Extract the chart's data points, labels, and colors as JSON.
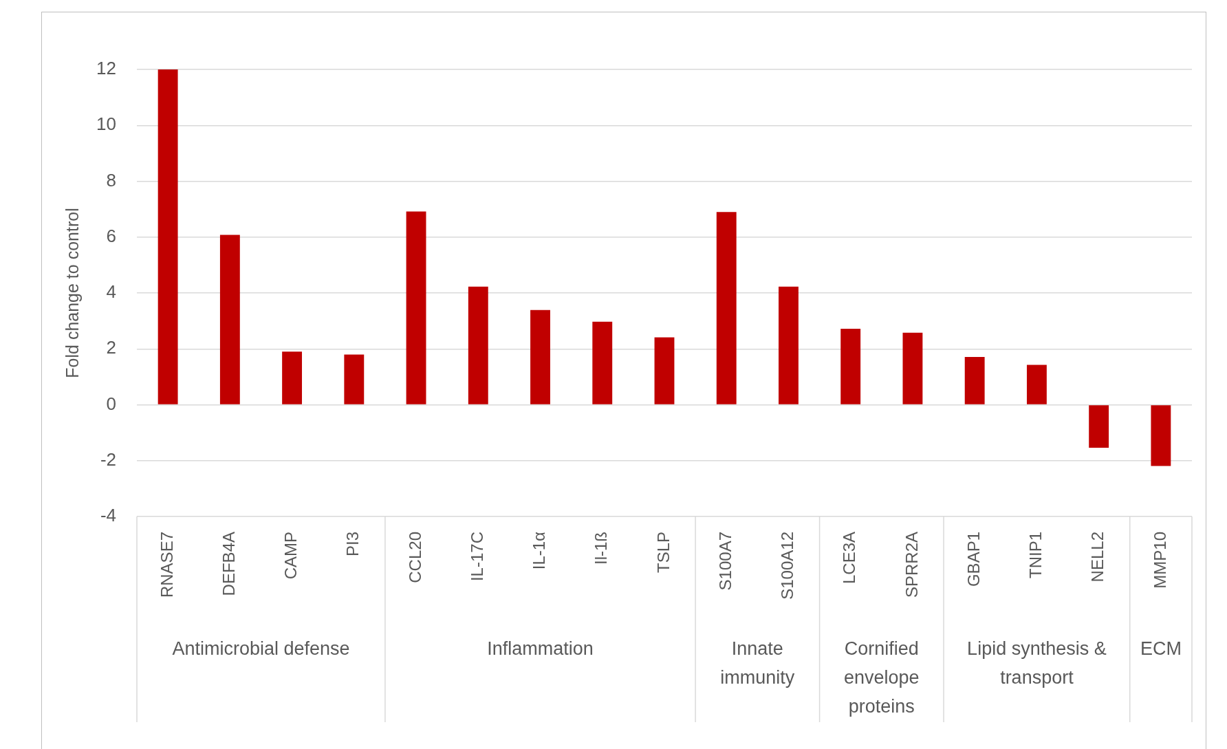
{
  "chart_data": {
    "type": "bar",
    "ylabel": "Fold change to control",
    "categories": [
      "RNASE7",
      "DEFB4A",
      "CAMP",
      "PI3",
      "CCL20",
      "IL-17C",
      "IL-1α",
      "Il-1ß",
      "TSLP",
      "S100A7",
      "S100A12",
      "LCE3A",
      "SPRR2A",
      "GBAP1",
      "TNIP1",
      "NELL2",
      "MMP10"
    ],
    "values": [
      12.0,
      6.08,
      1.9,
      1.8,
      6.92,
      4.23,
      3.39,
      2.97,
      2.41,
      6.9,
      4.23,
      2.72,
      2.58,
      1.71,
      1.43,
      -1.54,
      -2.19
    ],
    "color": "#c00000",
    "ylim": [
      -4,
      12
    ],
    "yticks": [
      -4,
      -2,
      0,
      2,
      4,
      6,
      8,
      10,
      12
    ],
    "grid": "y",
    "legend": false,
    "annotations": [
      "Antimicrobial defense",
      "Inflammation",
      "Innate immunity",
      "Cornified envelope proteins",
      "Lipid synthesis & transport",
      "ECM"
    ]
  }
}
